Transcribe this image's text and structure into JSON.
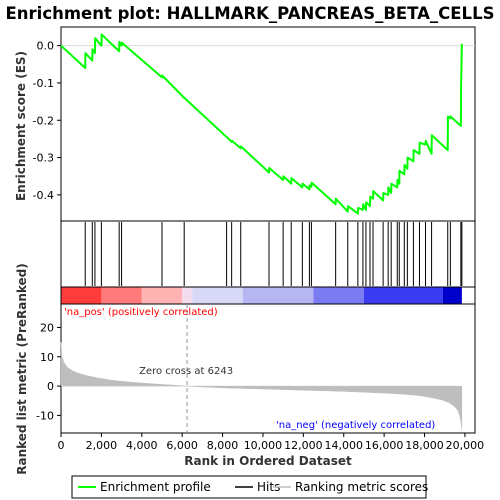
{
  "chart_data": {
    "type": "line",
    "title": "Enrichment plot: HALLMARK_PANCREAS_BETA_CELLS",
    "top_panel": {
      "ylabel": "Enrichment score (ES)",
      "ylim": [
        -0.47,
        0.05
      ],
      "yticks": [
        0.0,
        -0.1,
        -0.2,
        -0.3,
        -0.4
      ],
      "ytick_labels": [
        "0.0",
        "-0.1",
        "-0.2",
        "-0.3",
        "-0.4"
      ],
      "series": [
        {
          "name": "Enrichment profile",
          "color": "#00ff00",
          "x": [
            0,
            1200,
            1210,
            1550,
            1560,
            1680,
            1690,
            2000,
            2010,
            2880,
            2890,
            3000,
            3010,
            5000,
            5010,
            6100,
            6110,
            8200,
            8210,
            8450,
            8460,
            8900,
            8910,
            10300,
            10310,
            11000,
            11010,
            11400,
            11410,
            11950,
            11960,
            12300,
            12310,
            12400,
            12410,
            13600,
            13610,
            14200,
            14210,
            14700,
            14710,
            14950,
            14960,
            15100,
            15110,
            15300,
            15310,
            15450,
            15460,
            15950,
            15960,
            16200,
            16210,
            16350,
            16360,
            16650,
            16660,
            16750,
            16760,
            17000,
            17010,
            17150,
            17160,
            17450,
            17460,
            17750,
            17760,
            18050,
            18060,
            18350,
            18360,
            19150,
            19160,
            19280,
            19290,
            19800,
            19810,
            19850
          ],
          "y": [
            0.0,
            -0.06,
            -0.02,
            -0.04,
            -0.01,
            -0.02,
            0.02,
            0.0,
            0.03,
            -0.015,
            0.01,
            0.0,
            0.008,
            -0.085,
            -0.08,
            -0.14,
            -0.14,
            -0.245,
            -0.245,
            -0.258,
            -0.255,
            -0.275,
            -0.27,
            -0.34,
            -0.328,
            -0.36,
            -0.35,
            -0.37,
            -0.355,
            -0.38,
            -0.37,
            -0.385,
            -0.375,
            -0.378,
            -0.367,
            -0.425,
            -0.41,
            -0.445,
            -0.43,
            -0.45,
            -0.435,
            -0.44,
            -0.425,
            -0.44,
            -0.42,
            -0.43,
            -0.405,
            -0.41,
            -0.39,
            -0.415,
            -0.395,
            -0.4,
            -0.38,
            -0.395,
            -0.37,
            -0.38,
            -0.36,
            -0.37,
            -0.335,
            -0.345,
            -0.32,
            -0.33,
            -0.3,
            -0.31,
            -0.28,
            -0.29,
            -0.26,
            -0.265,
            -0.255,
            -0.29,
            -0.24,
            -0.28,
            -0.19,
            -0.195,
            -0.19,
            -0.215,
            -0.11,
            0.005
          ]
        }
      ]
    },
    "hits": {
      "name": "Hits",
      "color": "#000000",
      "x": [
        1200,
        1550,
        1680,
        2000,
        2880,
        3000,
        5000,
        6100,
        8200,
        8450,
        8900,
        10300,
        11000,
        11400,
        11950,
        12300,
        12400,
        13600,
        14200,
        14700,
        14950,
        15100,
        15300,
        15450,
        15950,
        16200,
        16350,
        16650,
        16750,
        17000,
        17150,
        17450,
        17750,
        18050,
        18350,
        19150,
        19280,
        19800,
        19850
      ]
    },
    "bottom_panel": {
      "ylabel": "Ranked list metric (PreRanked)",
      "xlabel": "Rank in Ordered Dataset",
      "ylim": [
        -16,
        28
      ],
      "yticks": [
        20,
        10,
        0,
        -10
      ],
      "ytick_labels": [
        "20",
        "10",
        "0",
        "-10"
      ],
      "xticks": [
        0,
        2000,
        4000,
        6000,
        8000,
        10000,
        12000,
        14000,
        16000,
        18000,
        20000
      ],
      "xtick_labels": [
        "0",
        "2,000",
        "4,000",
        "6,000",
        "8,000",
        "10,000",
        "12,000",
        "14,000",
        "16,000",
        "18,000",
        "20,000"
      ],
      "xlim": [
        0,
        20500
      ],
      "n_genes": 19850,
      "metric_profile": {
        "name": "Ranking metric scores",
        "color": "#bebebe",
        "x": [
          0,
          50,
          150,
          300,
          500,
          800,
          1200,
          1800,
          2500,
          3500,
          4500,
          5500,
          6243,
          7000,
          8000,
          9000,
          10000,
          11000,
          12000,
          13000,
          14000,
          15000,
          16000,
          17000,
          17800,
          18400,
          18900,
          19200,
          19450,
          19620,
          19720,
          19790,
          19830,
          19850
        ],
        "y": [
          15,
          10,
          8,
          6.5,
          5.5,
          4.5,
          3.7,
          2.8,
          2.0,
          1.3,
          0.8,
          0.35,
          0,
          -0.3,
          -0.6,
          -0.8,
          -1.0,
          -1.2,
          -1.4,
          -1.6,
          -1.8,
          -2.1,
          -2.4,
          -2.8,
          -3.3,
          -4.0,
          -4.8,
          -5.6,
          -6.8,
          -8.0,
          -9.5,
          -11.5,
          -13.5,
          -15.0
        ]
      },
      "zero_cross_label": "Zero cross at 6243",
      "zero_cross_x": 6243,
      "pos_label": "'na_pos' (positively correlated)",
      "neg_label": "'na_neg' (negatively correlated)",
      "pos_color": "#ff0000",
      "neg_color": "#0000ff"
    },
    "heat_bar": {
      "segments": [
        {
          "start": 0,
          "end": 2000,
          "color": "#ff3b3b"
        },
        {
          "start": 2000,
          "end": 4000,
          "color": "#ff7a7a"
        },
        {
          "start": 4000,
          "end": 6000,
          "color": "#ffb3b3"
        },
        {
          "start": 6000,
          "end": 6500,
          "color": "#f2dcee"
        },
        {
          "start": 6500,
          "end": 9000,
          "color": "#d8d8f7"
        },
        {
          "start": 9000,
          "end": 12500,
          "color": "#b6b6f3"
        },
        {
          "start": 12500,
          "end": 15000,
          "color": "#7b7bf2"
        },
        {
          "start": 15000,
          "end": 18900,
          "color": "#3b3bf2"
        },
        {
          "start": 18900,
          "end": 19850,
          "color": "#0000cc"
        }
      ]
    },
    "legend": {
      "items": [
        "Enrichment profile",
        "Hits",
        "Ranking metric scores"
      ],
      "placement": "bottom"
    }
  }
}
